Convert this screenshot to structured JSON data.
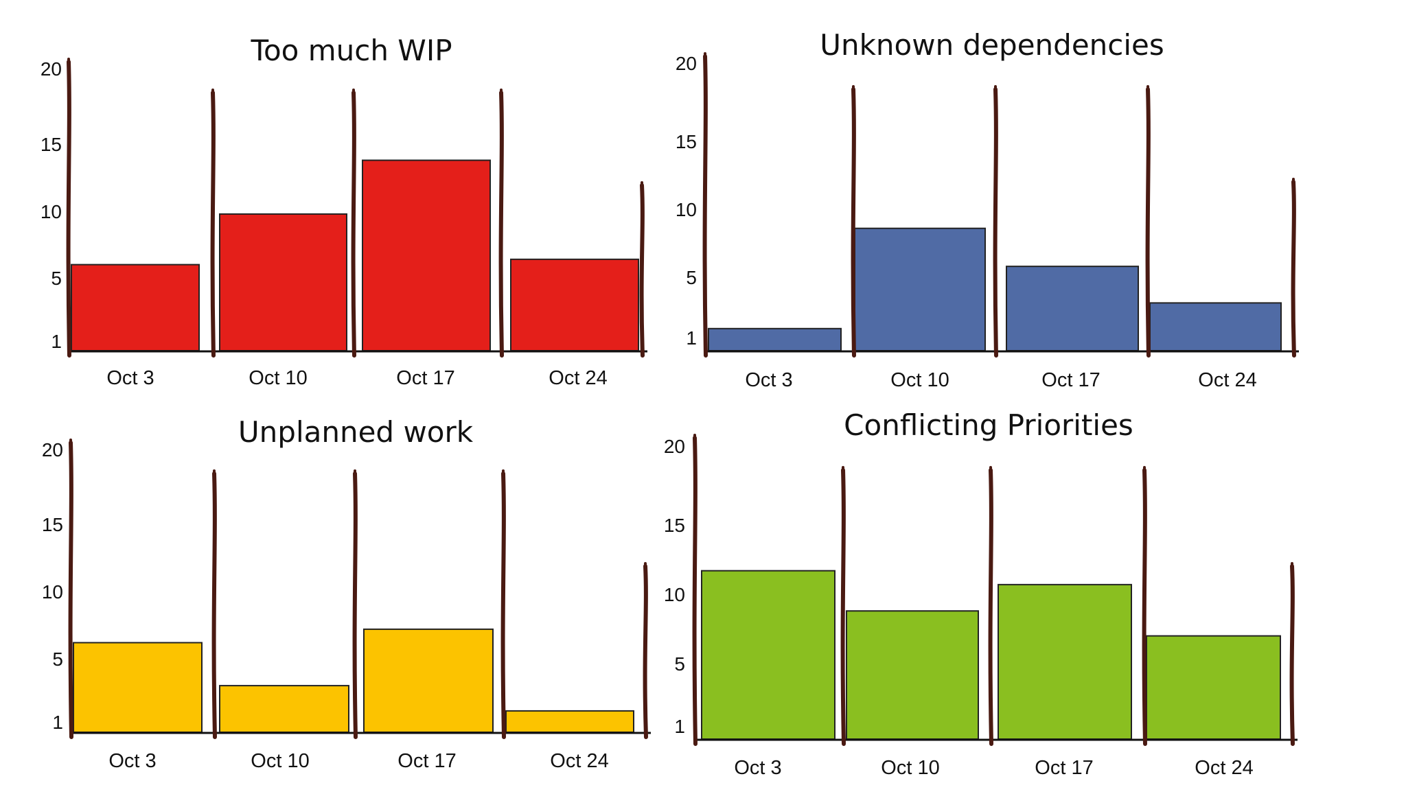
{
  "chart_data": [
    {
      "type": "bar",
      "title": "Too much WIP",
      "categories": [
        "Oct 3",
        "Oct 10",
        "Oct 17",
        "Oct 24"
      ],
      "values": [
        6,
        9.8,
        13.8,
        6.4
      ],
      "yticks": [
        1,
        5,
        10,
        15,
        20
      ],
      "ylim": [
        0,
        20
      ],
      "color": "#e41f1a"
    },
    {
      "type": "bar",
      "title": "Unknown dependencies",
      "categories": [
        "Oct 3",
        "Oct 10",
        "Oct 17",
        "Oct 24"
      ],
      "values": [
        1.6,
        8.6,
        5.8,
        3.3
      ],
      "yticks": [
        1,
        5,
        10,
        15,
        20
      ],
      "ylim": [
        0,
        20
      ],
      "color": "#506ba5"
    },
    {
      "type": "bar",
      "title": "Unplanned work",
      "categories": [
        "Oct 3",
        "Oct 10",
        "Oct 17",
        "Oct 24"
      ],
      "values": [
        6.2,
        3.3,
        7.2,
        1.7
      ],
      "yticks": [
        1,
        5,
        10,
        15,
        20
      ],
      "ylim": [
        0,
        20
      ],
      "color": "#fcc300"
    },
    {
      "type": "bar",
      "title": "Conflicting Priorities",
      "categories": [
        "Oct 3",
        "Oct 10",
        "Oct 17",
        "Oct 24"
      ],
      "values": [
        11.7,
        8.8,
        10.7,
        7
      ],
      "yticks": [
        1,
        5,
        10,
        15,
        20
      ],
      "ylim": [
        0,
        20
      ],
      "color": "#8abf20"
    }
  ]
}
